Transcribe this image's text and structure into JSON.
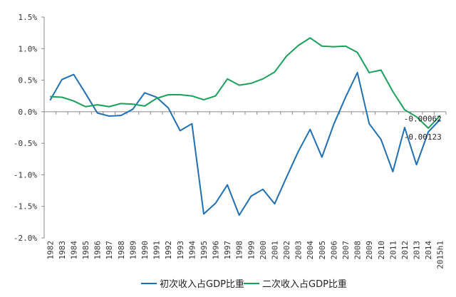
{
  "chart_data": {
    "type": "line",
    "title": "",
    "xlabel": "",
    "ylabel": "",
    "categories": [
      "1982",
      "1983",
      "1984",
      "1985",
      "1986",
      "1987",
      "1988",
      "1989",
      "1990",
      "1991",
      "1992",
      "1993",
      "1994",
      "1995",
      "1996",
      "1997",
      "1998",
      "1999",
      "2000",
      "2001",
      "2002",
      "2003",
      "2004",
      "2005",
      "2006",
      "2007",
      "2008",
      "2009",
      "2010",
      "2011",
      "2012",
      "2013",
      "2014",
      "2015h1"
    ],
    "ylim": [
      -0.02,
      0.015
    ],
    "yticks": [
      0.015,
      0.01,
      0.005,
      0.0,
      -0.005,
      -0.01,
      -0.015,
      -0.02
    ],
    "ytick_labels": [
      "1.5%",
      "1.0%",
      "0.5%",
      "0.0%",
      "-0.5%",
      "-1.0%",
      "-1.5%",
      "-2.0%"
    ],
    "series": [
      {
        "name": "初次收入占GDP比重",
        "color": "#1f6fb2",
        "values": [
          0.0018,
          0.0051,
          0.0059,
          0.0029,
          -0.0002,
          -0.0007,
          -0.0006,
          0.0004,
          0.003,
          0.0023,
          0.0006,
          -0.003,
          -0.0019,
          -0.0162,
          -0.0145,
          -0.0116,
          -0.0164,
          -0.0134,
          -0.0123,
          -0.0146,
          -0.0104,
          -0.0063,
          -0.0028,
          -0.0072,
          -0.002,
          0.0023,
          0.0062,
          -0.0019,
          -0.0044,
          -0.0095,
          -0.0025,
          -0.0084,
          -0.0032,
          -0.00123
        ]
      },
      {
        "name": "二次收入占GDP比重",
        "color": "#1aa05a",
        "values": [
          0.0024,
          0.0023,
          0.0017,
          0.0008,
          0.0011,
          0.0008,
          0.0013,
          0.0012,
          0.0009,
          0.0021,
          0.0027,
          0.0027,
          0.0025,
          0.0019,
          0.0025,
          0.0052,
          0.0042,
          0.0045,
          0.0052,
          0.0063,
          0.0088,
          0.0105,
          0.0117,
          0.0104,
          0.0103,
          0.0104,
          0.0094,
          0.0062,
          0.0066,
          0.0032,
          0.0003,
          -0.0008,
          -0.0026,
          -0.00062
        ]
      }
    ],
    "annotations": [
      {
        "text": "-0.00062",
        "series": 1,
        "index": 33
      },
      {
        "text": "-0.00123",
        "series": 0,
        "index": 33
      }
    ],
    "legend_position": "bottom",
    "grid": false
  }
}
